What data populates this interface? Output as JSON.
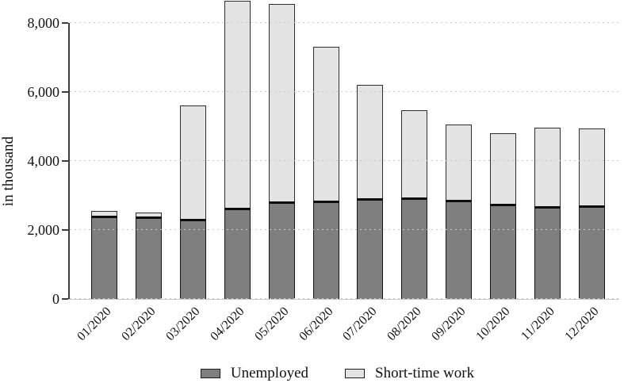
{
  "chart_data": {
    "type": "bar",
    "stacked": true,
    "title": "",
    "ylabel": "in thousand",
    "xlabel": "",
    "ylim": [
      0,
      8000
    ],
    "yticks": [
      0,
      2000,
      4000,
      6000,
      8000
    ],
    "ytick_labels": [
      "0",
      "2,000",
      "4,000",
      "6,000",
      "8,000"
    ],
    "grid": "horizontal-dotted",
    "legend_position": "bottom-center",
    "categories": [
      "01/2020",
      "02/2020",
      "03/2020",
      "04/2020",
      "05/2020",
      "06/2020",
      "07/2020",
      "08/2020",
      "09/2020",
      "10/2020",
      "11/2020",
      "12/2020"
    ],
    "series": [
      {
        "name": "Unemployed",
        "color": "#7f7f7f",
        "values": [
          2425,
          2400,
          2330,
          2645,
          2830,
          2850,
          2910,
          2945,
          2875,
          2760,
          2690,
          2715
        ]
      },
      {
        "name": "Short-time work",
        "color": "#e3e3e3",
        "values": [
          125,
          110,
          3290,
          6005,
          5720,
          4460,
          3300,
          2530,
          2185,
          2045,
          2280,
          2230
        ]
      }
    ]
  },
  "colors": {
    "axis": "#3d3d3d",
    "gridline": "#c8c8c8",
    "unemployed_fill": "#7f7f7f",
    "short_time_fill": "#e3e3e3",
    "bar_border": "#1a1a1a",
    "text": "#111111"
  }
}
